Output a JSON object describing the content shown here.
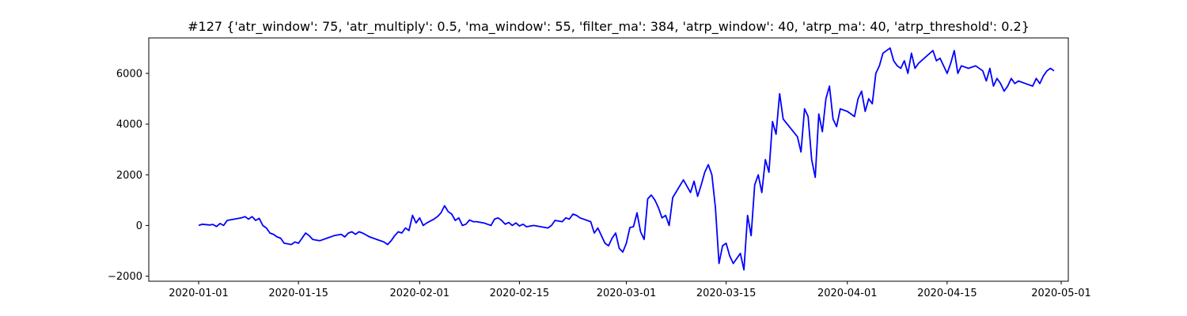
{
  "chart_data": {
    "type": "line",
    "title": "#127 {'atr_window': 75, 'atr_multiply': 0.5, 'ma_window': 55, 'filter_ma': 384, 'atrp_window': 40, 'atrp_ma': 40, 'atrp_threshold': 0.2}",
    "xlabel": "",
    "ylabel": "",
    "x_axis_type": "date",
    "xlim": [
      "2019-12-25",
      "2020-05-02"
    ],
    "ylim": [
      -2200,
      7400
    ],
    "grid": false,
    "legend": "none",
    "x_ticks": [
      {
        "value": "2020-01-01",
        "label": "2020-01-01"
      },
      {
        "value": "2020-01-15",
        "label": "2020-01-15"
      },
      {
        "value": "2020-02-01",
        "label": "2020-02-01"
      },
      {
        "value": "2020-02-15",
        "label": "2020-02-15"
      },
      {
        "value": "2020-03-01",
        "label": "2020-03-01"
      },
      {
        "value": "2020-03-15",
        "label": "2020-03-15"
      },
      {
        "value": "2020-04-01",
        "label": "2020-04-01"
      },
      {
        "value": "2020-04-15",
        "label": "2020-04-15"
      },
      {
        "value": "2020-05-01",
        "label": "2020-05-01"
      }
    ],
    "y_ticks": [
      {
        "value": -2000,
        "label": "−2000"
      },
      {
        "value": 0,
        "label": "0"
      },
      {
        "value": 2000,
        "label": "2000"
      },
      {
        "value": 4000,
        "label": "4000"
      },
      {
        "value": 6000,
        "label": "6000"
      }
    ],
    "series": [
      {
        "color": "#0000ff",
        "points": [
          [
            "2020-01-01",
            0
          ],
          [
            "2020-01-01T12:00",
            50
          ],
          [
            "2020-01-02T12:00",
            20
          ],
          [
            "2020-01-03",
            40
          ],
          [
            "2020-01-03T12:00",
            -40
          ],
          [
            "2020-01-04",
            80
          ],
          [
            "2020-01-04T12:00",
            0
          ],
          [
            "2020-01-05",
            200
          ],
          [
            "2020-01-06",
            250
          ],
          [
            "2020-01-07",
            300
          ],
          [
            "2020-01-07T12:00",
            350
          ],
          [
            "2020-01-08",
            250
          ],
          [
            "2020-01-08T12:00",
            350
          ],
          [
            "2020-01-09",
            200
          ],
          [
            "2020-01-09T12:00",
            280
          ],
          [
            "2020-01-10",
            0
          ],
          [
            "2020-01-10T12:00",
            -100
          ],
          [
            "2020-01-11",
            -300
          ],
          [
            "2020-01-11T12:00",
            -350
          ],
          [
            "2020-01-12",
            -450
          ],
          [
            "2020-01-12T12:00",
            -500
          ],
          [
            "2020-01-13",
            -700
          ],
          [
            "2020-01-14",
            -750
          ],
          [
            "2020-01-14T12:00",
            -650
          ],
          [
            "2020-01-15",
            -700
          ],
          [
            "2020-01-15T12:00",
            -500
          ],
          [
            "2020-01-16",
            -300
          ],
          [
            "2020-01-16T12:00",
            -400
          ],
          [
            "2020-01-17",
            -550
          ],
          [
            "2020-01-18",
            -600
          ],
          [
            "2020-01-19",
            -500
          ],
          [
            "2020-01-20",
            -400
          ],
          [
            "2020-01-21",
            -350
          ],
          [
            "2020-01-21T12:00",
            -450
          ],
          [
            "2020-01-22",
            -300
          ],
          [
            "2020-01-22T12:00",
            -250
          ],
          [
            "2020-01-23",
            -350
          ],
          [
            "2020-01-23T12:00",
            -250
          ],
          [
            "2020-01-24",
            -300
          ],
          [
            "2020-01-25",
            -450
          ],
          [
            "2020-01-26",
            -550
          ],
          [
            "2020-01-27",
            -650
          ],
          [
            "2020-01-27T12:00",
            -750
          ],
          [
            "2020-01-28",
            -600
          ],
          [
            "2020-01-28T12:00",
            -400
          ],
          [
            "2020-01-29",
            -250
          ],
          [
            "2020-01-29T12:00",
            -300
          ],
          [
            "2020-01-30",
            -100
          ],
          [
            "2020-01-30T12:00",
            -200
          ],
          [
            "2020-01-31",
            400
          ],
          [
            "2020-01-31T12:00",
            100
          ],
          [
            "2020-02-01",
            300
          ],
          [
            "2020-02-01T12:00",
            0
          ],
          [
            "2020-02-02",
            100
          ],
          [
            "2020-02-03",
            250
          ],
          [
            "2020-02-03T12:00",
            350
          ],
          [
            "2020-02-04",
            500
          ],
          [
            "2020-02-04T12:00",
            780
          ],
          [
            "2020-02-05",
            550
          ],
          [
            "2020-02-05T12:00",
            450
          ],
          [
            "2020-02-06",
            200
          ],
          [
            "2020-02-06T12:00",
            300
          ],
          [
            "2020-02-07",
            0
          ],
          [
            "2020-02-07T12:00",
            50
          ],
          [
            "2020-02-08",
            220
          ],
          [
            "2020-02-08T12:00",
            150
          ],
          [
            "2020-02-09",
            150
          ],
          [
            "2020-02-10",
            100
          ],
          [
            "2020-02-11",
            0
          ],
          [
            "2020-02-11T12:00",
            250
          ],
          [
            "2020-02-12",
            300
          ],
          [
            "2020-02-12T12:00",
            200
          ],
          [
            "2020-02-13",
            50
          ],
          [
            "2020-02-13T12:00",
            120
          ],
          [
            "2020-02-14",
            0
          ],
          [
            "2020-02-14T12:00",
            100
          ],
          [
            "2020-02-15",
            -20
          ],
          [
            "2020-02-15T12:00",
            50
          ],
          [
            "2020-02-16",
            -50
          ],
          [
            "2020-02-17",
            0
          ],
          [
            "2020-02-19",
            -100
          ],
          [
            "2020-02-19T12:00",
            0
          ],
          [
            "2020-02-20",
            200
          ],
          [
            "2020-02-21",
            150
          ],
          [
            "2020-02-21T12:00",
            300
          ],
          [
            "2020-02-22",
            250
          ],
          [
            "2020-02-22T12:00",
            450
          ],
          [
            "2020-02-23",
            400
          ],
          [
            "2020-02-23T12:00",
            300
          ],
          [
            "2020-02-25",
            150
          ],
          [
            "2020-02-25T12:00",
            -300
          ],
          [
            "2020-02-26",
            -100
          ],
          [
            "2020-02-26T12:00",
            -400
          ],
          [
            "2020-02-27",
            -700
          ],
          [
            "2020-02-27T12:00",
            -800
          ],
          [
            "2020-02-28",
            -500
          ],
          [
            "2020-02-28T12:00",
            -300
          ],
          [
            "2020-02-29",
            -900
          ],
          [
            "2020-02-29T12:00",
            -1050
          ],
          [
            "2020-03-01",
            -700
          ],
          [
            "2020-03-01T12:00",
            -80
          ],
          [
            "2020-03-02",
            -50
          ],
          [
            "2020-03-02T12:00",
            500
          ],
          [
            "2020-03-03",
            -250
          ],
          [
            "2020-03-03T12:00",
            -550
          ],
          [
            "2020-03-04",
            1050
          ],
          [
            "2020-03-04T12:00",
            1200
          ],
          [
            "2020-03-05",
            1000
          ],
          [
            "2020-03-05T12:00",
            700
          ],
          [
            "2020-03-06",
            300
          ],
          [
            "2020-03-06T12:00",
            400
          ],
          [
            "2020-03-07",
            0
          ],
          [
            "2020-03-07T12:00",
            1100
          ],
          [
            "2020-03-09",
            1800
          ],
          [
            "2020-03-10",
            1300
          ],
          [
            "2020-03-10T12:00",
            1750
          ],
          [
            "2020-03-11",
            1150
          ],
          [
            "2020-03-11T12:00",
            1600
          ],
          [
            "2020-03-12",
            2100
          ],
          [
            "2020-03-12T12:00",
            2400
          ],
          [
            "2020-03-13",
            2000
          ],
          [
            "2020-03-13T12:00",
            700
          ],
          [
            "2020-03-14",
            -1500
          ],
          [
            "2020-03-14T12:00",
            -800
          ],
          [
            "2020-03-15",
            -700
          ],
          [
            "2020-03-15T12:00",
            -1200
          ],
          [
            "2020-03-16",
            -1500
          ],
          [
            "2020-03-16T12:00",
            -1300
          ],
          [
            "2020-03-17",
            -1100
          ],
          [
            "2020-03-17T12:00",
            -1750
          ],
          [
            "2020-03-18",
            400
          ],
          [
            "2020-03-18T12:00",
            -400
          ],
          [
            "2020-03-19",
            1600
          ],
          [
            "2020-03-19T12:00",
            2000
          ],
          [
            "2020-03-20",
            1300
          ],
          [
            "2020-03-20T12:00",
            2600
          ],
          [
            "2020-03-21",
            2100
          ],
          [
            "2020-03-21T12:00",
            4100
          ],
          [
            "2020-03-22",
            3600
          ],
          [
            "2020-03-22T12:00",
            5200
          ],
          [
            "2020-03-23",
            4200
          ],
          [
            "2020-03-25",
            3500
          ],
          [
            "2020-03-25T12:00",
            2900
          ],
          [
            "2020-03-26",
            4600
          ],
          [
            "2020-03-26T12:00",
            4300
          ],
          [
            "2020-03-27",
            2600
          ],
          [
            "2020-03-27T12:00",
            1900
          ],
          [
            "2020-03-28",
            4400
          ],
          [
            "2020-03-28T12:00",
            3700
          ],
          [
            "2020-03-29",
            5000
          ],
          [
            "2020-03-29T12:00",
            5500
          ],
          [
            "2020-03-30",
            4200
          ],
          [
            "2020-03-30T12:00",
            3900
          ],
          [
            "2020-03-31",
            4600
          ],
          [
            "2020-04-01",
            4500
          ],
          [
            "2020-04-02",
            4300
          ],
          [
            "2020-04-02T12:00",
            5000
          ],
          [
            "2020-04-03",
            5300
          ],
          [
            "2020-04-03T12:00",
            4500
          ],
          [
            "2020-04-04",
            5000
          ],
          [
            "2020-04-04T12:00",
            4800
          ],
          [
            "2020-04-05",
            6000
          ],
          [
            "2020-04-05T12:00",
            6300
          ],
          [
            "2020-04-06",
            6800
          ],
          [
            "2020-04-07",
            7000
          ],
          [
            "2020-04-07T12:00",
            6500
          ],
          [
            "2020-04-08",
            6300
          ],
          [
            "2020-04-08T12:00",
            6200
          ],
          [
            "2020-04-09",
            6500
          ],
          [
            "2020-04-09T12:00",
            6000
          ],
          [
            "2020-04-10",
            6800
          ],
          [
            "2020-04-10T12:00",
            6200
          ],
          [
            "2020-04-11",
            6400
          ],
          [
            "2020-04-13",
            6900
          ],
          [
            "2020-04-13T12:00",
            6500
          ],
          [
            "2020-04-14",
            6600
          ],
          [
            "2020-04-14T12:00",
            6300
          ],
          [
            "2020-04-15",
            6000
          ],
          [
            "2020-04-15T12:00",
            6400
          ],
          [
            "2020-04-16",
            6900
          ],
          [
            "2020-04-16T12:00",
            6000
          ],
          [
            "2020-04-17",
            6300
          ],
          [
            "2020-04-18",
            6200
          ],
          [
            "2020-04-19",
            6300
          ],
          [
            "2020-04-20",
            6100
          ],
          [
            "2020-04-20T12:00",
            5700
          ],
          [
            "2020-04-21",
            6200
          ],
          [
            "2020-04-21T12:00",
            5500
          ],
          [
            "2020-04-22",
            5800
          ],
          [
            "2020-04-22T12:00",
            5600
          ],
          [
            "2020-04-23",
            5300
          ],
          [
            "2020-04-23T12:00",
            5500
          ],
          [
            "2020-04-24",
            5800
          ],
          [
            "2020-04-24T12:00",
            5600
          ],
          [
            "2020-04-25",
            5700
          ],
          [
            "2020-04-26",
            5600
          ],
          [
            "2020-04-27",
            5500
          ],
          [
            "2020-04-27T12:00",
            5800
          ],
          [
            "2020-04-28",
            5600
          ],
          [
            "2020-04-28T12:00",
            5900
          ],
          [
            "2020-04-29",
            6100
          ],
          [
            "2020-04-29T12:00",
            6200
          ],
          [
            "2020-04-30",
            6100
          ]
        ]
      }
    ]
  }
}
